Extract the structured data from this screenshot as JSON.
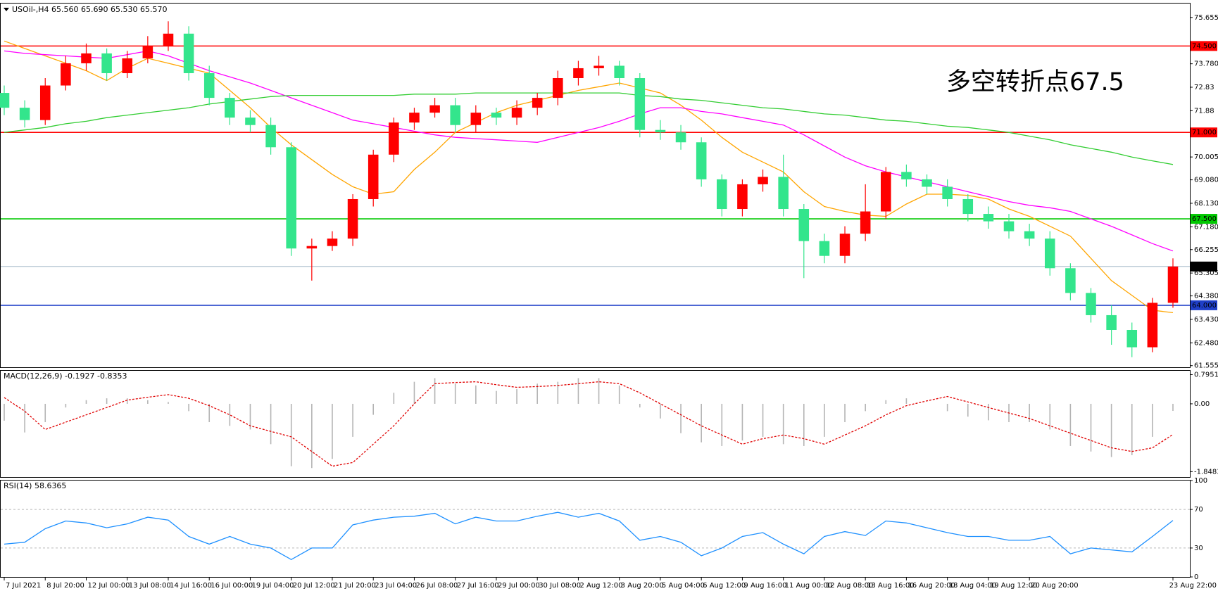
{
  "chart_data": [
    {
      "type": "candlestick",
      "title": "USOil-,H4 65.560 65.690 65.530 65.570",
      "categories": [
        "7 Jul 2021",
        null,
        "8 Jul 20:00",
        null,
        "12 Jul 00:00",
        null,
        "13 Jul 08:00",
        null,
        "14 Jul 16:00",
        null,
        "16 Jul 00:00",
        null,
        "19 Jul 04:00",
        null,
        "20 Jul 12:00",
        null,
        "21 Jul 20:00",
        null,
        "23 Jul 04:00",
        null,
        "26 Jul 08:00",
        null,
        "27 Jul 16:00",
        null,
        "29 Jul 00:00",
        null,
        "30 Jul 08:00",
        null,
        "2 Aug 12:00",
        null,
        "3 Aug 20:00",
        null,
        "5 Aug 04:00",
        null,
        "6 Aug 12:00",
        null,
        "9 Aug 16:00",
        null,
        "11 Aug 00:00",
        null,
        "12 Aug 08:00",
        null,
        "13 Aug 16:00",
        null,
        "16 Aug 20:00",
        null,
        "18 Aug 04:00",
        null,
        "19 Aug 12:00",
        null,
        "20 Aug 20:00",
        null,
        null,
        null,
        null,
        null,
        null,
        "23 Aug 22:00"
      ],
      "open": [
        72.6,
        72.0,
        71.5,
        72.9,
        73.8,
        74.2,
        73.4,
        74.0,
        74.5,
        75.0,
        73.4,
        72.4,
        71.6,
        71.3,
        70.4,
        66.3,
        66.4,
        66.7,
        68.3,
        70.1,
        71.4,
        71.8,
        72.1,
        71.3,
        71.8,
        71.6,
        72.0,
        72.4,
        73.2,
        73.6,
        73.7,
        73.2,
        71.1,
        71.0,
        70.6,
        69.1,
        67.9,
        68.9,
        69.2,
        67.9,
        66.6,
        66.0,
        66.9,
        67.8,
        69.4,
        69.1,
        68.8,
        68.3,
        67.7,
        67.4,
        67.0,
        66.7,
        65.5,
        64.5,
        63.6,
        63.0,
        62.3,
        64.1
      ],
      "high": [
        72.9,
        72.3,
        73.2,
        74.1,
        74.6,
        74.4,
        74.3,
        74.9,
        75.5,
        75.3,
        73.7,
        72.6,
        71.9,
        71.6,
        70.6,
        66.7,
        67.0,
        68.5,
        70.3,
        71.6,
        72.0,
        72.4,
        72.4,
        72.1,
        72.0,
        72.3,
        72.6,
        73.5,
        73.9,
        74.1,
        73.9,
        73.4,
        71.5,
        71.3,
        70.8,
        69.3,
        69.1,
        69.5,
        70.1,
        68.1,
        66.9,
        67.2,
        68.9,
        69.6,
        69.7,
        69.3,
        69.1,
        68.5,
        68.0,
        67.7,
        67.3,
        67.0,
        65.7,
        64.7,
        64.0,
        63.3,
        64.3,
        65.9
      ],
      "low": [
        71.7,
        71.2,
        71.3,
        72.7,
        73.5,
        73.1,
        73.2,
        73.8,
        74.3,
        73.1,
        72.1,
        71.3,
        71.0,
        70.1,
        66.0,
        65.0,
        66.2,
        66.4,
        68.0,
        69.8,
        71.1,
        71.6,
        71.0,
        71.0,
        71.3,
        71.3,
        71.7,
        72.1,
        72.9,
        73.3,
        72.9,
        70.8,
        70.7,
        70.3,
        68.8,
        67.6,
        67.6,
        68.6,
        67.6,
        65.1,
        65.7,
        65.7,
        66.6,
        67.5,
        68.8,
        68.5,
        68.0,
        67.4,
        67.1,
        66.7,
        66.4,
        65.2,
        64.2,
        63.3,
        62.4,
        61.9,
        62.1,
        63.9
      ],
      "close": [
        72.0,
        71.5,
        72.9,
        73.8,
        74.2,
        73.4,
        74.0,
        74.5,
        75.0,
        73.4,
        72.4,
        71.6,
        71.3,
        70.4,
        66.3,
        66.4,
        66.7,
        68.3,
        70.1,
        71.4,
        71.8,
        72.1,
        71.3,
        71.8,
        71.6,
        72.0,
        72.4,
        73.2,
        73.6,
        73.7,
        73.2,
        71.1,
        71.0,
        70.6,
        69.1,
        67.9,
        68.9,
        69.2,
        67.9,
        66.6,
        66.0,
        66.9,
        67.8,
        69.4,
        69.1,
        68.8,
        68.3,
        67.7,
        67.4,
        67.0,
        66.7,
        65.5,
        64.5,
        63.6,
        63.0,
        62.3,
        64.1,
        65.57
      ],
      "up_color": "#ff0000",
      "down_color": "#33e58c",
      "series": [
        {
          "color": "#ffa500",
          "values": [
            74.7,
            74.4,
            74.1,
            73.8,
            73.5,
            73.1,
            73.6,
            74.0,
            73.8,
            73.6,
            73.4,
            72.7,
            72.0,
            71.2,
            70.5,
            69.9,
            69.3,
            68.8,
            68.5,
            68.6,
            69.5,
            70.2,
            71.0,
            71.4,
            71.8,
            72.1,
            72.3,
            72.5,
            72.7,
            72.85,
            73.0,
            72.8,
            72.6,
            72.1,
            71.5,
            70.8,
            70.2,
            69.8,
            69.4,
            68.6,
            68.0,
            67.8,
            67.65,
            67.6,
            68.1,
            68.5,
            68.5,
            68.45,
            68.3,
            67.9,
            67.6,
            67.2,
            66.8,
            65.9,
            65.0,
            64.4,
            63.8,
            63.7
          ]
        },
        {
          "color": "#ff00ff",
          "values": [
            74.3,
            74.2,
            74.15,
            74.1,
            74.05,
            74.0,
            74.15,
            74.3,
            74.1,
            73.8,
            73.5,
            73.25,
            73.0,
            72.7,
            72.4,
            72.1,
            71.8,
            71.5,
            71.35,
            71.2,
            71.05,
            70.9,
            70.8,
            70.75,
            70.7,
            70.65,
            70.6,
            70.8,
            71.0,
            71.2,
            71.45,
            71.75,
            72.0,
            72.0,
            71.85,
            71.75,
            71.6,
            71.45,
            71.3,
            70.9,
            70.45,
            70.0,
            69.65,
            69.4,
            69.2,
            69.0,
            68.8,
            68.6,
            68.4,
            68.2,
            68.05,
            67.95,
            67.8,
            67.5,
            67.2,
            66.85,
            66.5,
            66.2
          ]
        },
        {
          "color": "#32cd32",
          "values": [
            71.0,
            71.1,
            71.2,
            71.35,
            71.45,
            71.6,
            71.7,
            71.8,
            71.9,
            72.0,
            72.15,
            72.25,
            72.35,
            72.45,
            72.5,
            72.5,
            72.5,
            72.5,
            72.5,
            72.5,
            72.55,
            72.55,
            72.55,
            72.6,
            72.6,
            72.6,
            72.6,
            72.6,
            72.6,
            72.6,
            72.6,
            72.5,
            72.45,
            72.35,
            72.3,
            72.2,
            72.1,
            72.0,
            71.95,
            71.85,
            71.75,
            71.7,
            71.6,
            71.5,
            71.45,
            71.35,
            71.25,
            71.2,
            71.1,
            71.0,
            70.85,
            70.7,
            70.5,
            70.35,
            70.2,
            70.0,
            69.85,
            69.7
          ]
        }
      ],
      "hlines": [
        {
          "value": 74.5,
          "label": "74.500",
          "color": "#ff0000",
          "tag_color": "#ff0000"
        },
        {
          "value": 71.0,
          "label": "71.000",
          "color": "#ff0000",
          "tag_color": "#ff0000"
        },
        {
          "value": 67.5,
          "label": "67.500",
          "color": "#00c800",
          "tag_color": "#00c800"
        },
        {
          "value": 65.57,
          "label": "65.570",
          "color": "#a8bccc",
          "tag_color": "#000000"
        },
        {
          "value": 64.0,
          "label": "64.000",
          "color": "#1f3fc8",
          "tag_color": "#1f3fc8"
        }
      ],
      "annotation": "多空转折点67.5",
      "annotation_color": "#ff0000",
      "ylim": [
        61.49,
        76.22
      ],
      "yticks": [
        75.655,
        {
          "value": 73.78,
          "label": "73.780"
        },
        72.83,
        71.88,
        70.005,
        {
          "value": 69.08,
          "label": "69.080"
        },
        {
          "value": 68.13,
          "label": "68.130"
        },
        {
          "value": 67.18,
          "label": "67.180"
        },
        66.255,
        65.305,
        {
          "value": 64.38,
          "label": "64.380"
        },
        {
          "value": 63.43,
          "label": "63.430"
        },
        {
          "value": 62.48,
          "label": "62.480"
        },
        61.555
      ]
    },
    {
      "type": "macd",
      "title": "MACD(12,26,9) -0.1927 -0.8353",
      "series": [
        {
          "type": "bar",
          "color": "#b4b4b4",
          "values": [
            -0.46,
            -0.78,
            -0.5,
            -0.1,
            0.1,
            0.15,
            0.15,
            0.1,
            0.05,
            -0.2,
            -0.5,
            -0.6,
            -0.7,
            -1.1,
            -1.7,
            -1.75,
            -1.5,
            -0.9,
            -0.3,
            0.3,
            0.6,
            0.7,
            0.55,
            0.5,
            0.35,
            0.4,
            0.55,
            0.6,
            0.7,
            0.7,
            0.5,
            -0.1,
            -0.4,
            -0.8,
            -1.05,
            -1.15,
            -1.0,
            -0.9,
            -1.1,
            -1.15,
            -0.9,
            -0.5,
            -0.2,
            0.1,
            0.15,
            0.0,
            -0.2,
            -0.35,
            -0.45,
            -0.5,
            -0.5,
            -0.7,
            -1.15,
            -1.3,
            -1.45,
            -1.4,
            -0.9,
            -0.1927
          ]
        },
        {
          "type": "line",
          "color": "#e00000",
          "dashed": true,
          "values": [
            0.17,
            -0.2,
            -0.7,
            -0.5,
            -0.3,
            -0.1,
            0.1,
            0.18,
            0.25,
            0.15,
            -0.05,
            -0.3,
            -0.6,
            -0.75,
            -0.9,
            -1.3,
            -1.7,
            -1.6,
            -1.1,
            -0.6,
            0.0,
            0.55,
            0.58,
            0.6,
            0.52,
            0.45,
            0.47,
            0.5,
            0.55,
            0.6,
            0.55,
            0.3,
            0.0,
            -0.3,
            -0.6,
            -0.85,
            -1.1,
            -0.95,
            -0.85,
            -0.95,
            -1.1,
            -0.85,
            -0.6,
            -0.3,
            -0.05,
            0.08,
            0.2,
            0.05,
            -0.1,
            -0.25,
            -0.4,
            -0.6,
            -0.8,
            -1.0,
            -1.2,
            -1.3,
            -1.2,
            -0.8353
          ]
        }
      ],
      "ylim": [
        -1.995,
        0.9
      ],
      "yticks": [
        0.7951,
        {
          "value": 0,
          "label": "0.00"
        },
        -1.8483
      ]
    },
    {
      "type": "line",
      "title": "RSI(14) 58.6365",
      "series": [
        {
          "type": "line",
          "color": "#1e90ff",
          "values": [
            34,
            36,
            50,
            58,
            56,
            51,
            55,
            62,
            59,
            42,
            34,
            42,
            34,
            30,
            18,
            30,
            30,
            54,
            59,
            62,
            63,
            66,
            55,
            62,
            58,
            58,
            63,
            67,
            62,
            66,
            58,
            38,
            42,
            36,
            22,
            30,
            42,
            46,
            34,
            24,
            42,
            47,
            43,
            58,
            56,
            51,
            46,
            42,
            42,
            38,
            38,
            42,
            24,
            30,
            28,
            26,
            42,
            58.6365
          ]
        }
      ],
      "grid": "dashed",
      "ylim": [
        0,
        100
      ],
      "yticks": [
        100,
        70,
        30,
        0
      ]
    }
  ]
}
